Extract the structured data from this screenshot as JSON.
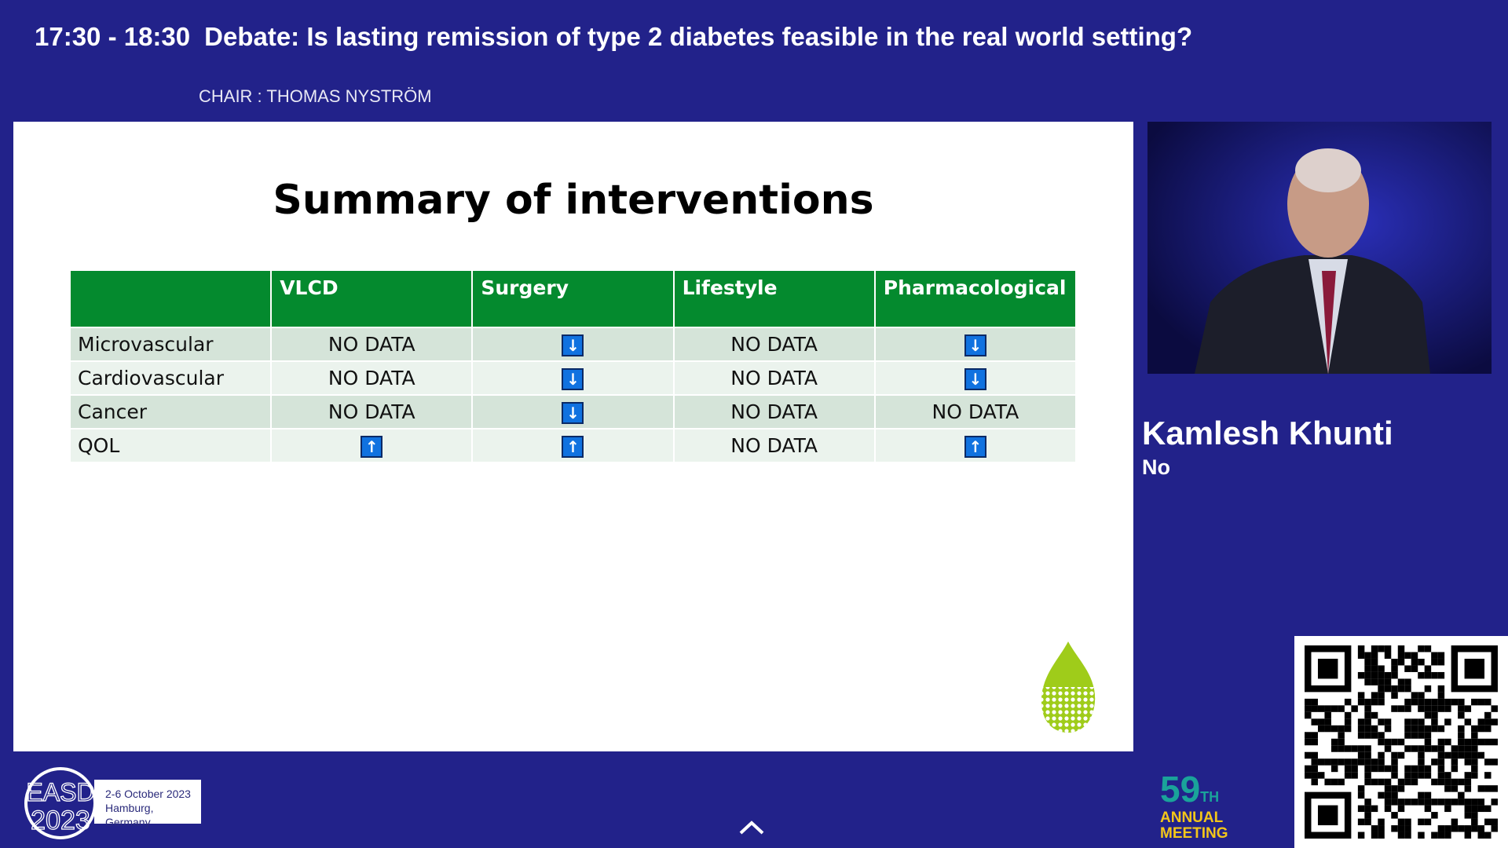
{
  "header": {
    "time": "17:30 - 18:30",
    "title": "Debate: Is lasting remission of type 2 diabetes feasible in the real world setting?",
    "chair": "CHAIR : THOMAS NYSTRÖM"
  },
  "slide": {
    "title": "Summary of interventions",
    "columns": [
      "",
      "VLCD",
      "Surgery",
      "Lifestyle",
      "Pharmacological"
    ],
    "rows": [
      {
        "label": "Microvascular",
        "cells": [
          "NO DATA",
          "down",
          "NO DATA",
          "down"
        ]
      },
      {
        "label": "Cardiovascular",
        "cells": [
          "NO DATA",
          "down",
          "NO DATA",
          "down"
        ]
      },
      {
        "label": "Cancer",
        "cells": [
          "NO DATA",
          "down",
          "NO DATA",
          "NO DATA"
        ]
      },
      {
        "label": "QOL",
        "cells": [
          "up",
          "up",
          "NO DATA",
          "up"
        ]
      }
    ]
  },
  "speaker": {
    "name": "Kamlesh Khunti",
    "vote": "No"
  },
  "footer": {
    "logo_text": "EASD 2023",
    "dates": "2-6 October 2023",
    "location": "Hamburg, Germany",
    "edition_number": "59",
    "edition_suffix": "TH",
    "annual": "ANNUAL",
    "meeting": "MEETING"
  },
  "colors": {
    "background": "#22228a",
    "table_header": "#048a2e",
    "arrow": "#1072e0"
  }
}
